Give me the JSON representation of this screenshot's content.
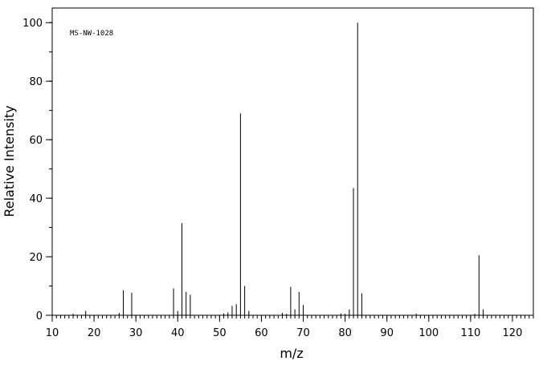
{
  "chart_data": {
    "type": "stem",
    "annotation": "MS-NW-1028",
    "xlabel": "m/z",
    "ylabel": "Relative Intensity",
    "x": [
      15,
      18,
      26,
      27,
      29,
      39,
      40,
      41,
      42,
      43,
      51,
      52,
      53,
      54,
      55,
      56,
      57,
      65,
      66,
      67,
      68,
      69,
      70,
      79,
      80,
      81,
      82,
      83,
      84,
      97,
      111,
      112,
      113
    ],
    "values": [
      0.5,
      1.5,
      0.8,
      8.5,
      7.7,
      9.2,
      1.5,
      31.5,
      8,
      7,
      0.6,
      1,
      3.2,
      3.8,
      69,
      10,
      1.5,
      0.8,
      0.5,
      9.7,
      2,
      8,
      3.5,
      0.6,
      0.5,
      2,
      43.5,
      100,
      7.5,
      0.5,
      0.5,
      20.5,
      2
    ],
    "color": "#000000",
    "xlim": [
      10,
      125
    ],
    "xticks": [
      10,
      20,
      30,
      40,
      50,
      60,
      70,
      80,
      90,
      100,
      110,
      120
    ],
    "ylim": [
      0,
      105
    ],
    "yticks": [
      0,
      20,
      40,
      60,
      80,
      100
    ]
  }
}
